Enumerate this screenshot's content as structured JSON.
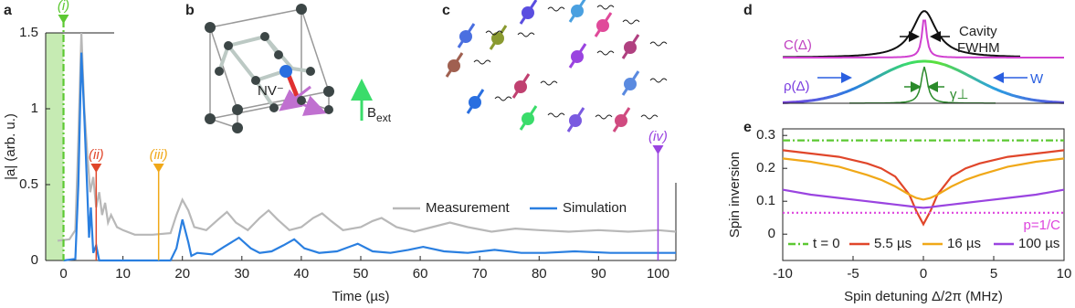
{
  "chart_data": [
    {
      "type": "line",
      "panel": "a",
      "x_label": "Time (µs)",
      "y_label": "|a| (arb. u.)",
      "xlim": [
        -3,
        103
      ],
      "ylim": [
        0,
        1.5
      ],
      "xticks": [
        0,
        10,
        20,
        30,
        40,
        50,
        60,
        70,
        80,
        90,
        100
      ],
      "yticks": [
        0,
        0.5,
        1,
        1.5
      ],
      "series": [
        {
          "name": "Measurement",
          "color": "#b8b8b8",
          "x": [
            -1,
            1,
            2,
            2.5,
            3,
            3.5,
            4,
            4.5,
            5,
            5.5,
            6,
            6.5,
            7,
            7.5,
            8,
            9,
            10,
            12,
            15,
            18,
            19,
            20,
            21,
            22,
            24,
            26,
            27.5,
            29,
            31,
            33,
            34.5,
            36,
            38,
            40,
            42,
            43.5,
            45,
            47,
            50,
            52,
            53.5,
            56,
            59,
            62,
            65,
            68,
            72,
            76,
            80,
            85,
            90,
            95,
            100,
            103
          ],
          "values": [
            0.13,
            0.14,
            0.2,
            0.8,
            1.5,
            1.0,
            0.7,
            0.45,
            0.55,
            0.35,
            0.45,
            0.3,
            0.38,
            0.25,
            0.3,
            0.22,
            0.2,
            0.17,
            0.17,
            0.18,
            0.3,
            0.4,
            0.33,
            0.22,
            0.2,
            0.27,
            0.32,
            0.25,
            0.2,
            0.28,
            0.33,
            0.27,
            0.2,
            0.22,
            0.28,
            0.31,
            0.26,
            0.2,
            0.22,
            0.26,
            0.28,
            0.22,
            0.19,
            0.22,
            0.25,
            0.22,
            0.19,
            0.21,
            0.2,
            0.19,
            0.2,
            0.19,
            0.2,
            0.19
          ]
        },
        {
          "name": "Simulation",
          "color": "#2a7fe0",
          "x": [
            0,
            2,
            2.5,
            3,
            3.5,
            4,
            4.3,
            4.6,
            5,
            5.5,
            6,
            18,
            19,
            20,
            21,
            21.5,
            22.5,
            25,
            27,
            29.5,
            31.5,
            33,
            35,
            37,
            38.8,
            40.5,
            43,
            46,
            49.5,
            52,
            55,
            58,
            60.5,
            64,
            68,
            72.5,
            77,
            81,
            86,
            92,
            97,
            103
          ],
          "values": [
            0,
            0.01,
            0.5,
            1.37,
            0.95,
            0.45,
            0.15,
            0.35,
            0.05,
            0.1,
            0,
            0,
            0.08,
            0.27,
            0.12,
            0.03,
            0.05,
            0.04,
            0.09,
            0.15,
            0.08,
            0.05,
            0.06,
            0.1,
            0.14,
            0.08,
            0.05,
            0.06,
            0.11,
            0.06,
            0.05,
            0.07,
            0.09,
            0.06,
            0.05,
            0.07,
            0.05,
            0.05,
            0.06,
            0.05,
            0.05,
            0.05
          ]
        }
      ],
      "markers": [
        {
          "label": "(i)",
          "x": 0,
          "color": "#5cc832"
        },
        {
          "label": "(ii)",
          "x": 5.5,
          "color": "#e0462a"
        },
        {
          "label": "(iii)",
          "x": 16,
          "color": "#f0a818"
        },
        {
          "label": "(iv)",
          "x": 100,
          "color": "#9a44e0"
        }
      ]
    },
    {
      "type": "line",
      "panel": "e",
      "x_label": "Spin detuning Δ/2π (MHz)",
      "y_label": "Spin inversion",
      "xlim": [
        -10,
        10
      ],
      "ylim": [
        -0.08,
        0.32
      ],
      "xticks": [
        -10,
        -5,
        0,
        5,
        10
      ],
      "yticks": [
        0,
        0.1,
        0.2,
        0.3
      ],
      "x": [
        -10,
        -8,
        -6,
        -4,
        -3,
        -2,
        -1,
        -0.5,
        0,
        0.5,
        1,
        2,
        3,
        4,
        6,
        8,
        10
      ],
      "series": [
        {
          "name": "t = 0",
          "color": "#5cc832",
          "dash": "dashdot",
          "legend": true,
          "values": [
            0.285,
            0.285,
            0.285,
            0.285,
            0.285,
            0.285,
            0.285,
            0.285,
            0.285,
            0.285,
            0.285,
            0.285,
            0.285,
            0.285,
            0.285,
            0.285,
            0.285
          ]
        },
        {
          "name": "5.5 µs",
          "color": "#e0462a",
          "dash": "solid",
          "legend": true,
          "values": [
            0.255,
            0.245,
            0.235,
            0.215,
            0.2,
            0.175,
            0.12,
            0.07,
            0.03,
            0.07,
            0.12,
            0.175,
            0.2,
            0.215,
            0.235,
            0.245,
            0.255
          ]
        },
        {
          "name": "16 µs",
          "color": "#f0a818",
          "dash": "solid",
          "legend": true,
          "values": [
            0.23,
            0.22,
            0.205,
            0.18,
            0.165,
            0.145,
            0.12,
            0.11,
            0.105,
            0.11,
            0.12,
            0.145,
            0.165,
            0.18,
            0.205,
            0.22,
            0.23
          ]
        },
        {
          "name": "100 µs",
          "color": "#9a44e0",
          "dash": "solid",
          "legend": true,
          "values": [
            0.135,
            0.12,
            0.11,
            0.1,
            0.095,
            0.09,
            0.085,
            0.082,
            0.08,
            0.082,
            0.085,
            0.09,
            0.095,
            0.1,
            0.11,
            0.12,
            0.135
          ]
        },
        {
          "name": "p=1/C",
          "color": "#dd44dd",
          "dash": "dotted",
          "legend": false,
          "values": [
            0.065,
            0.065,
            0.065,
            0.065,
            0.065,
            0.065,
            0.065,
            0.065,
            0.065,
            0.065,
            0.065,
            0.065,
            0.065,
            0.065,
            0.065,
            0.065,
            0.065
          ]
        }
      ]
    }
  ],
  "panel_b": {
    "panel": "b",
    "nv_label": "NV⁻",
    "field_label": "B",
    "field_subscript": "ext"
  },
  "panel_c": {
    "panel": "c"
  },
  "panel_d": {
    "panel": "d",
    "cavity_label": "Cavity",
    "fwhm_label": "FWHM",
    "c_label": "C(Δ)",
    "rho_label": "ρ(Δ)",
    "w_label": "W",
    "gamma_label": "γ⊥"
  }
}
